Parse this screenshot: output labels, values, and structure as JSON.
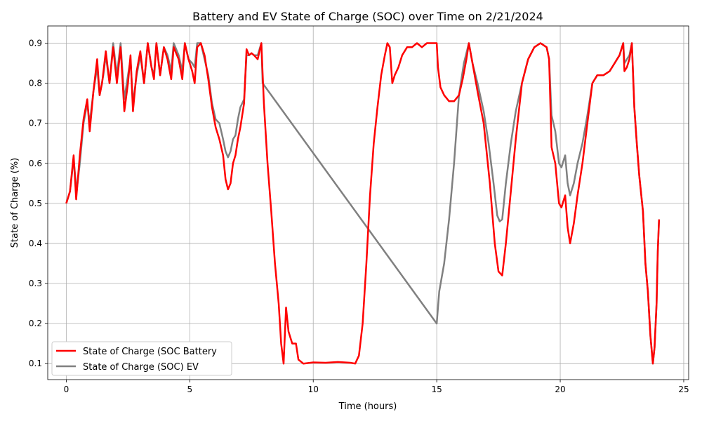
{
  "chart_data": {
    "type": "line",
    "title": "Battery and EV State of Charge (SOC) over Time on 2/21/2024",
    "xlabel": "Time (hours)",
    "ylabel": "State of Charge (%)",
    "xlim": [
      -0.75,
      25.2
    ],
    "ylim": [
      0.06,
      0.943
    ],
    "xticks": [
      0,
      5,
      10,
      15,
      20,
      25
    ],
    "yticks": [
      0.1,
      0.2,
      0.3,
      0.4,
      0.5,
      0.6,
      0.7,
      0.8,
      0.9
    ],
    "grid": true,
    "legend_position": "lower-left",
    "series": [
      {
        "name": "State of Charge (SOC Battery",
        "color": "#ff0000",
        "points": [
          [
            0.0,
            0.5
          ],
          [
            0.15,
            0.53
          ],
          [
            0.3,
            0.62
          ],
          [
            0.4,
            0.51
          ],
          [
            0.55,
            0.62
          ],
          [
            0.7,
            0.71
          ],
          [
            0.85,
            0.76
          ],
          [
            0.95,
            0.68
          ],
          [
            1.1,
            0.78
          ],
          [
            1.25,
            0.86
          ],
          [
            1.35,
            0.77
          ],
          [
            1.45,
            0.8
          ],
          [
            1.6,
            0.88
          ],
          [
            1.75,
            0.8
          ],
          [
            1.9,
            0.89
          ],
          [
            2.05,
            0.8
          ],
          [
            2.2,
            0.89
          ],
          [
            2.35,
            0.73
          ],
          [
            2.5,
            0.8
          ],
          [
            2.6,
            0.87
          ],
          [
            2.7,
            0.73
          ],
          [
            2.85,
            0.83
          ],
          [
            3.0,
            0.88
          ],
          [
            3.15,
            0.8
          ],
          [
            3.3,
            0.9
          ],
          [
            3.45,
            0.84
          ],
          [
            3.55,
            0.81
          ],
          [
            3.65,
            0.9
          ],
          [
            3.8,
            0.82
          ],
          [
            3.95,
            0.89
          ],
          [
            4.1,
            0.86
          ],
          [
            4.25,
            0.81
          ],
          [
            4.35,
            0.89
          ],
          [
            4.55,
            0.86
          ],
          [
            4.7,
            0.81
          ],
          [
            4.8,
            0.9
          ],
          [
            4.95,
            0.86
          ],
          [
            5.1,
            0.83
          ],
          [
            5.2,
            0.8
          ],
          [
            5.3,
            0.89
          ],
          [
            5.45,
            0.9
          ],
          [
            5.6,
            0.87
          ],
          [
            5.75,
            0.81
          ],
          [
            5.9,
            0.74
          ],
          [
            6.05,
            0.69
          ],
          [
            6.2,
            0.66
          ],
          [
            6.35,
            0.62
          ],
          [
            6.45,
            0.56
          ],
          [
            6.55,
            0.535
          ],
          [
            6.65,
            0.55
          ],
          [
            6.75,
            0.6
          ],
          [
            6.85,
            0.62
          ],
          [
            6.95,
            0.66
          ],
          [
            7.05,
            0.69
          ],
          [
            7.2,
            0.75
          ],
          [
            7.3,
            0.885
          ],
          [
            7.4,
            0.87
          ],
          [
            7.5,
            0.875
          ],
          [
            7.6,
            0.87
          ],
          [
            7.75,
            0.86
          ],
          [
            7.9,
            0.9
          ],
          [
            8.0,
            0.75
          ],
          [
            8.15,
            0.6
          ],
          [
            8.3,
            0.48
          ],
          [
            8.45,
            0.35
          ],
          [
            8.6,
            0.25
          ],
          [
            8.7,
            0.15
          ],
          [
            8.8,
            0.1
          ],
          [
            8.9,
            0.24
          ],
          [
            9.0,
            0.18
          ],
          [
            9.15,
            0.15
          ],
          [
            9.3,
            0.15
          ],
          [
            9.4,
            0.11
          ],
          [
            9.6,
            0.1
          ],
          [
            10.0,
            0.103
          ],
          [
            10.5,
            0.102
          ],
          [
            11.0,
            0.104
          ],
          [
            11.5,
            0.102
          ],
          [
            11.7,
            0.1
          ],
          [
            11.85,
            0.12
          ],
          [
            12.0,
            0.2
          ],
          [
            12.15,
            0.35
          ],
          [
            12.3,
            0.52
          ],
          [
            12.45,
            0.65
          ],
          [
            12.6,
            0.74
          ],
          [
            12.75,
            0.82
          ],
          [
            12.9,
            0.87
          ],
          [
            13.0,
            0.9
          ],
          [
            13.1,
            0.89
          ],
          [
            13.2,
            0.8
          ],
          [
            13.3,
            0.82
          ],
          [
            13.45,
            0.84
          ],
          [
            13.6,
            0.87
          ],
          [
            13.8,
            0.89
          ],
          [
            14.0,
            0.89
          ],
          [
            14.2,
            0.9
          ],
          [
            14.4,
            0.89
          ],
          [
            14.6,
            0.9
          ],
          [
            14.8,
            0.9
          ],
          [
            15.0,
            0.9
          ],
          [
            15.05,
            0.84
          ],
          [
            15.15,
            0.79
          ],
          [
            15.3,
            0.77
          ],
          [
            15.5,
            0.755
          ],
          [
            15.7,
            0.755
          ],
          [
            15.9,
            0.77
          ],
          [
            16.05,
            0.81
          ],
          [
            16.2,
            0.86
          ],
          [
            16.3,
            0.9
          ],
          [
            16.45,
            0.85
          ],
          [
            16.65,
            0.78
          ],
          [
            16.9,
            0.7
          ],
          [
            17.15,
            0.55
          ],
          [
            17.35,
            0.4
          ],
          [
            17.5,
            0.33
          ],
          [
            17.65,
            0.32
          ],
          [
            17.8,
            0.4
          ],
          [
            18.0,
            0.53
          ],
          [
            18.2,
            0.66
          ],
          [
            18.45,
            0.8
          ],
          [
            18.7,
            0.86
          ],
          [
            18.95,
            0.89
          ],
          [
            19.2,
            0.9
          ],
          [
            19.45,
            0.89
          ],
          [
            19.55,
            0.86
          ],
          [
            19.65,
            0.64
          ],
          [
            19.8,
            0.6
          ],
          [
            19.95,
            0.5
          ],
          [
            20.05,
            0.49
          ],
          [
            20.2,
            0.52
          ],
          [
            20.3,
            0.44
          ],
          [
            20.4,
            0.4
          ],
          [
            20.55,
            0.45
          ],
          [
            20.7,
            0.52
          ],
          [
            20.9,
            0.6
          ],
          [
            21.1,
            0.7
          ],
          [
            21.3,
            0.8
          ],
          [
            21.5,
            0.82
          ],
          [
            21.75,
            0.82
          ],
          [
            22.0,
            0.83
          ],
          [
            22.2,
            0.85
          ],
          [
            22.4,
            0.87
          ],
          [
            22.55,
            0.9
          ],
          [
            22.6,
            0.83
          ],
          [
            22.7,
            0.84
          ],
          [
            22.8,
            0.86
          ],
          [
            22.9,
            0.9
          ],
          [
            23.0,
            0.74
          ],
          [
            23.1,
            0.65
          ],
          [
            23.2,
            0.57
          ],
          [
            23.35,
            0.48
          ],
          [
            23.45,
            0.35
          ],
          [
            23.55,
            0.28
          ],
          [
            23.65,
            0.17
          ],
          [
            23.75,
            0.1
          ],
          [
            23.82,
            0.14
          ],
          [
            23.9,
            0.25
          ],
          [
            23.95,
            0.38
          ],
          [
            24.0,
            0.46
          ]
        ]
      },
      {
        "name": "State of Charge (SOC) EV",
        "color": "#808080",
        "points": [
          [
            0.0,
            0.5
          ],
          [
            0.15,
            0.53
          ],
          [
            0.3,
            0.61
          ],
          [
            0.42,
            0.53
          ],
          [
            0.55,
            0.6
          ],
          [
            0.7,
            0.7
          ],
          [
            0.85,
            0.75
          ],
          [
            0.95,
            0.7
          ],
          [
            1.1,
            0.78
          ],
          [
            1.25,
            0.84
          ],
          [
            1.35,
            0.77
          ],
          [
            1.5,
            0.82
          ],
          [
            1.6,
            0.87
          ],
          [
            1.75,
            0.8
          ],
          [
            1.9,
            0.9
          ],
          [
            2.05,
            0.82
          ],
          [
            2.2,
            0.9
          ],
          [
            2.35,
            0.76
          ],
          [
            2.5,
            0.82
          ],
          [
            2.6,
            0.86
          ],
          [
            2.7,
            0.75
          ],
          [
            2.85,
            0.82
          ],
          [
            3.0,
            0.87
          ],
          [
            3.15,
            0.8
          ],
          [
            3.3,
            0.9
          ],
          [
            3.45,
            0.84
          ],
          [
            3.55,
            0.82
          ],
          [
            3.65,
            0.9
          ],
          [
            3.8,
            0.82
          ],
          [
            3.95,
            0.89
          ],
          [
            4.1,
            0.87
          ],
          [
            4.25,
            0.83
          ],
          [
            4.35,
            0.9
          ],
          [
            4.55,
            0.87
          ],
          [
            4.7,
            0.83
          ],
          [
            4.8,
            0.9
          ],
          [
            4.95,
            0.86
          ],
          [
            5.1,
            0.85
          ],
          [
            5.2,
            0.84
          ],
          [
            5.3,
            0.9
          ],
          [
            5.45,
            0.9
          ],
          [
            5.6,
            0.86
          ],
          [
            5.75,
            0.82
          ],
          [
            5.9,
            0.75
          ],
          [
            6.05,
            0.71
          ],
          [
            6.2,
            0.7
          ],
          [
            6.35,
            0.66
          ],
          [
            6.45,
            0.63
          ],
          [
            6.55,
            0.615
          ],
          [
            6.65,
            0.63
          ],
          [
            6.75,
            0.66
          ],
          [
            6.85,
            0.67
          ],
          [
            6.95,
            0.71
          ],
          [
            7.05,
            0.74
          ],
          [
            7.2,
            0.76
          ],
          [
            7.3,
            0.87
          ],
          [
            7.4,
            0.87
          ],
          [
            7.5,
            0.875
          ],
          [
            7.6,
            0.87
          ],
          [
            7.75,
            0.87
          ],
          [
            7.9,
            0.9
          ],
          [
            7.95,
            0.8
          ],
          [
            15.0,
            0.2
          ],
          [
            15.1,
            0.28
          ],
          [
            15.3,
            0.35
          ],
          [
            15.5,
            0.46
          ],
          [
            15.7,
            0.6
          ],
          [
            15.9,
            0.77
          ],
          [
            16.1,
            0.85
          ],
          [
            16.3,
            0.9
          ],
          [
            16.45,
            0.85
          ],
          [
            16.65,
            0.8
          ],
          [
            16.9,
            0.73
          ],
          [
            17.1,
            0.65
          ],
          [
            17.3,
            0.55
          ],
          [
            17.45,
            0.47
          ],
          [
            17.55,
            0.455
          ],
          [
            17.65,
            0.46
          ],
          [
            17.8,
            0.55
          ],
          [
            18.0,
            0.65
          ],
          [
            18.2,
            0.73
          ],
          [
            18.45,
            0.8
          ],
          [
            18.7,
            0.86
          ],
          [
            18.95,
            0.89
          ],
          [
            19.2,
            0.9
          ],
          [
            19.45,
            0.89
          ],
          [
            19.55,
            0.86
          ],
          [
            19.65,
            0.72
          ],
          [
            19.8,
            0.68
          ],
          [
            19.95,
            0.6
          ],
          [
            20.05,
            0.59
          ],
          [
            20.2,
            0.62
          ],
          [
            20.3,
            0.55
          ],
          [
            20.4,
            0.52
          ],
          [
            20.55,
            0.55
          ],
          [
            20.7,
            0.6
          ],
          [
            20.9,
            0.65
          ],
          [
            21.1,
            0.72
          ],
          [
            21.3,
            0.8
          ],
          [
            21.5,
            0.82
          ],
          [
            21.75,
            0.82
          ],
          [
            22.0,
            0.83
          ],
          [
            22.2,
            0.85
          ],
          [
            22.4,
            0.87
          ],
          [
            22.55,
            0.9
          ],
          [
            22.6,
            0.85
          ],
          [
            22.7,
            0.86
          ],
          [
            22.8,
            0.87
          ],
          [
            22.9,
            0.9
          ],
          [
            23.0,
            0.74
          ],
          [
            23.1,
            0.65
          ],
          [
            23.2,
            0.57
          ],
          [
            23.35,
            0.48
          ],
          [
            23.45,
            0.35
          ],
          [
            23.55,
            0.28
          ],
          [
            23.65,
            0.17
          ],
          [
            23.75,
            0.1
          ],
          [
            23.82,
            0.14
          ],
          [
            23.9,
            0.25
          ],
          [
            23.95,
            0.38
          ],
          [
            24.0,
            0.46
          ]
        ]
      }
    ]
  }
}
